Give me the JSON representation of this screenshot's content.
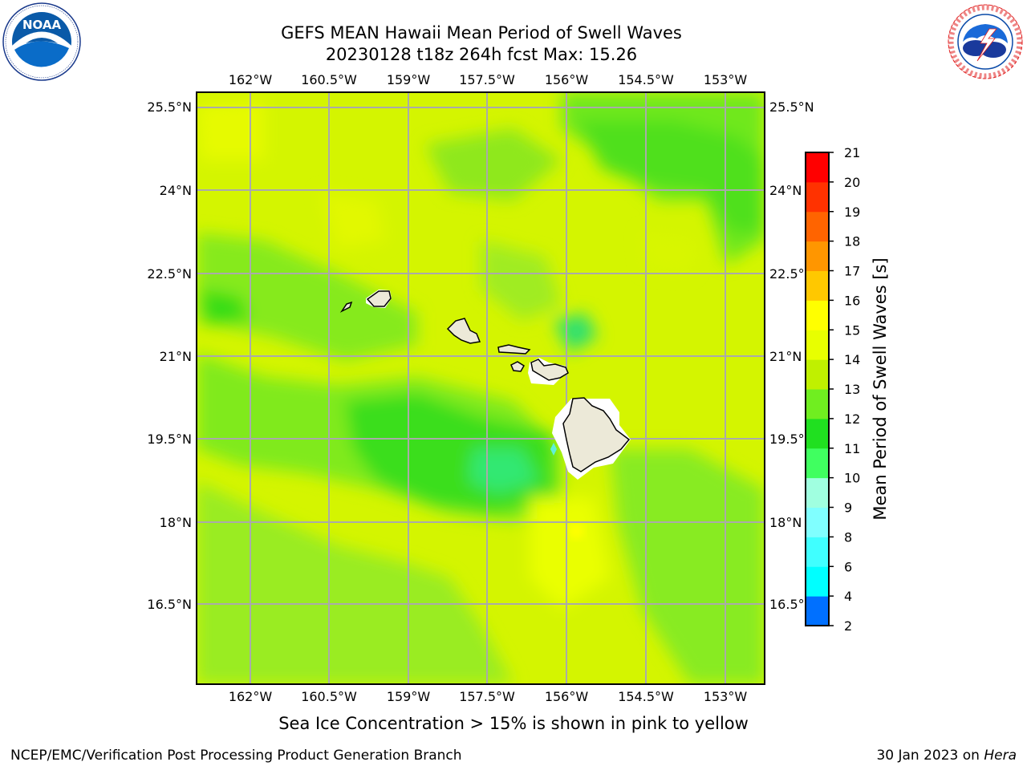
{
  "title_line1": "GEFS MEAN Hawaii Mean Period of Swell Waves",
  "title_line2": "20230128 t18z 264h fcst   Max: 15.26",
  "lon_ticks": [
    "162°W",
    "160.5°W",
    "159°W",
    "157.5°W",
    "156°W",
    "154.5°W",
    "153°W"
  ],
  "lat_ticks_left": [
    "25.5°N",
    "24°N",
    "22.5°N",
    "21°N",
    "19.5°N",
    "18°N",
    "16.5°N"
  ],
  "lat_ticks_right": [
    "25.5°N",
    "24°N",
    "22.5°N",
    "21°N",
    "19.5°N",
    "18°N",
    "16.5°N"
  ],
  "colorbar": {
    "label": "Mean Period of Swell Waves [s]",
    "tick_labels": [
      "2",
      "4",
      "6",
      "8",
      "9",
      "10",
      "11",
      "12",
      "13",
      "14",
      "15",
      "16",
      "17",
      "18",
      "19",
      "20",
      "21"
    ],
    "colors": [
      "#0000ff",
      "#0070ff",
      "#00ffff",
      "#40ffff",
      "#80ffff",
      "#a0ffe0",
      "#40ff60",
      "#20e020",
      "#70ee20",
      "#c0f000",
      "#e8ff00",
      "#ffff00",
      "#ffc800",
      "#ff9600",
      "#ff6400",
      "#ff3200",
      "#ff0000"
    ]
  },
  "caption": "Sea Ice Concentration > 15% is shown in pink to yellow",
  "footer_left": "NCEP/EMC/Verification Post Processing Product Generation Branch",
  "footer_date": "30 Jan 2023 on ",
  "footer_host": "Hera",
  "logos": {
    "left": "noaa-logo",
    "right": "national-weather-service-logo"
  }
}
